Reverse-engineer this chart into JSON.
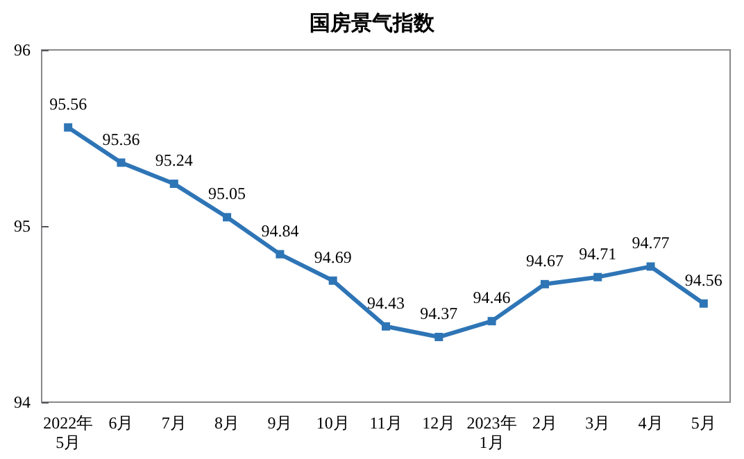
{
  "chart_data": {
    "type": "line",
    "title": "国房景气指数",
    "categories": [
      "2022年\n5月",
      "6月",
      "7月",
      "8月",
      "9月",
      "10月",
      "11月",
      "12月",
      "2023年\n1月",
      "2月",
      "3月",
      "4月",
      "5月"
    ],
    "values": [
      95.56,
      95.36,
      95.24,
      95.05,
      94.84,
      94.69,
      94.43,
      94.37,
      94.46,
      94.67,
      94.71,
      94.77,
      94.56
    ],
    "color": "#2e75b6",
    "ylim": [
      94,
      96
    ],
    "yticks": [
      94,
      95,
      96
    ],
    "grid": false,
    "marker": "square",
    "line_style": "solid",
    "data_labels": true
  }
}
